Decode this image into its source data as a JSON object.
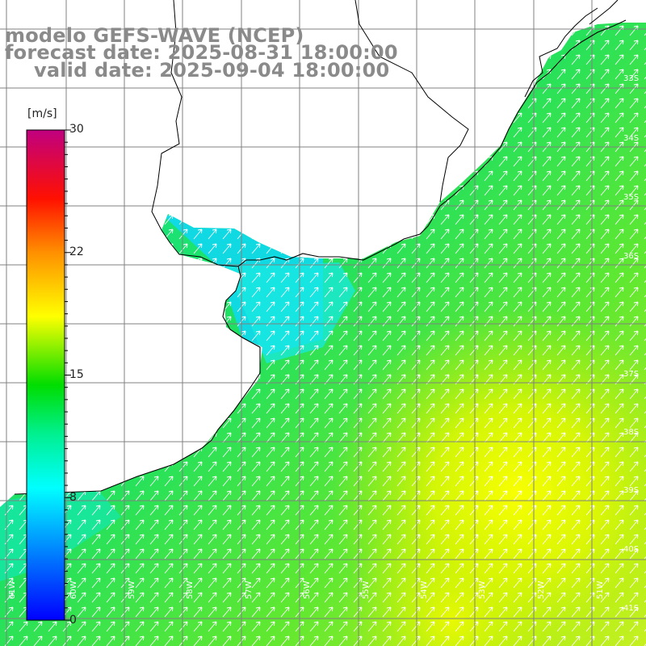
{
  "title": {
    "line1": "modelo GEFS-WAVE (NCEP)",
    "line2": "forecast date: 2025-08-31 18:00:00",
    "line3": "valid date: 2025-09-04 18:00:00"
  },
  "colorbar": {
    "unit": "[m/s]",
    "labels": [
      "30",
      "22",
      "15",
      "8",
      "0"
    ],
    "values": [
      30,
      22,
      15,
      8,
      0
    ],
    "range": [
      0,
      30
    ],
    "colors": [
      "#0000ff",
      "#0090ff",
      "#00ffff",
      "#00f080",
      "#00dd00",
      "#c8f000",
      "#ffff00",
      "#ff9000",
      "#ff2000",
      "#e00060",
      "#c00080"
    ]
  },
  "map": {
    "variable": "wind speed with wind direction arrows",
    "lat_ticks": [
      "33S",
      "34S",
      "35S",
      "36S",
      "37S",
      "38S",
      "39S",
      "40S",
      "41S"
    ],
    "lon_ticks": [
      "61W",
      "60W",
      "59W",
      "58W",
      "57W",
      "56W",
      "55W",
      "54W",
      "53W",
      "52W",
      "51W"
    ],
    "land_color": "#ffffff",
    "grid_color": "#808080",
    "coast_color": "#000000",
    "arrow_color": "#ffffff"
  }
}
